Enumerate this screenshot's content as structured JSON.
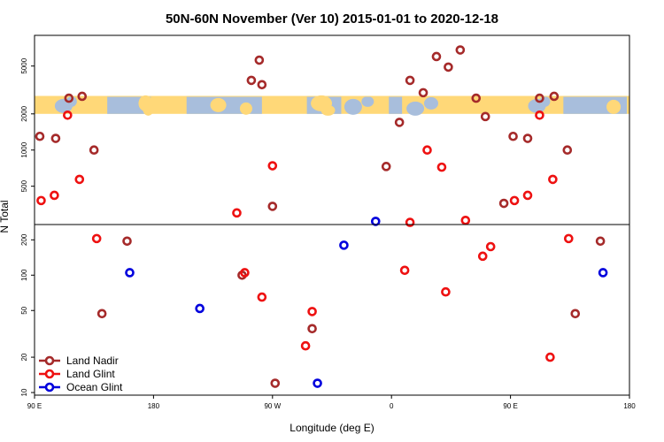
{
  "chart_data": {
    "type": "scatter",
    "title": "50N-60N November (Ver 10)   2015-01-01 to 2020-12-18",
    "xlabel": "Longitude (deg E)",
    "ylabel": "N Total",
    "xlim": [
      90,
      540
    ],
    "x_ticks": [
      {
        "value": 90,
        "label": "90 E"
      },
      {
        "value": 180,
        "label": "180"
      },
      {
        "value": 270,
        "label": "90 W"
      },
      {
        "value": 360,
        "label": "0"
      },
      {
        "value": 450,
        "label": "90 E"
      },
      {
        "value": 540,
        "label": "180"
      }
    ],
    "y_scale": "log",
    "lower_panel": {
      "ylim": [
        9.5,
        270
      ],
      "y_ticks": [
        10,
        20,
        50,
        100,
        200
      ]
    },
    "upper_panel": {
      "ylim": [
        240,
        9000
      ],
      "y_ticks": [
        500,
        1000,
        2000,
        5000
      ],
      "map_band": [
        2000,
        2800
      ]
    },
    "legend": {
      "position": "bottom-left",
      "entries": [
        "Land Nadir",
        "Land Glint",
        "Ocean Glint"
      ]
    },
    "series": [
      {
        "name": "Land Nadir",
        "color": "#a52a2a",
        "points": [
          [
            94,
            1300
          ],
          [
            106,
            1250
          ],
          [
            116,
            2700
          ],
          [
            126,
            2800
          ],
          [
            135,
            1000
          ],
          [
            141,
            47
          ],
          [
            160,
            195
          ],
          [
            247,
            100
          ],
          [
            254,
            3800
          ],
          [
            260,
            5600
          ],
          [
            262,
            3500
          ],
          [
            270,
            340
          ],
          [
            272,
            12
          ],
          [
            300,
            35
          ],
          [
            356,
            730
          ],
          [
            366,
            1700
          ],
          [
            374,
            3800
          ],
          [
            384,
            3000
          ],
          [
            394,
            6000
          ],
          [
            403,
            4900
          ],
          [
            412,
            6800
          ],
          [
            424,
            2700
          ],
          [
            431,
            1900
          ],
          [
            445,
            360
          ],
          [
            452,
            1300
          ],
          [
            463,
            1250
          ],
          [
            472,
            2700
          ],
          [
            483,
            2800
          ],
          [
            493,
            1000
          ],
          [
            499,
            47
          ],
          [
            518,
            195
          ]
        ]
      },
      {
        "name": "Land Glint",
        "color": "#ee1111",
        "points": [
          [
            95,
            380
          ],
          [
            105,
            420
          ],
          [
            115,
            1950
          ],
          [
            124,
            570
          ],
          [
            137,
            205
          ],
          [
            243,
            300
          ],
          [
            249,
            105
          ],
          [
            262,
            65
          ],
          [
            270,
            740
          ],
          [
            295,
            25
          ],
          [
            300,
            49
          ],
          [
            370,
            110
          ],
          [
            374,
            250
          ],
          [
            387,
            1000
          ],
          [
            398,
            720
          ],
          [
            401,
            72
          ],
          [
            416,
            260
          ],
          [
            429,
            145
          ],
          [
            435,
            175
          ],
          [
            453,
            380
          ],
          [
            463,
            420
          ],
          [
            472,
            1950
          ],
          [
            482,
            570
          ],
          [
            480,
            20
          ],
          [
            494,
            205
          ]
        ]
      },
      {
        "name": "Ocean Glint",
        "color": "#0000dd",
        "points": [
          [
            162,
            105
          ],
          [
            215,
            52
          ],
          [
            304,
            12
          ],
          [
            324,
            180
          ],
          [
            348,
            255
          ],
          [
            520,
            105
          ]
        ]
      }
    ]
  }
}
